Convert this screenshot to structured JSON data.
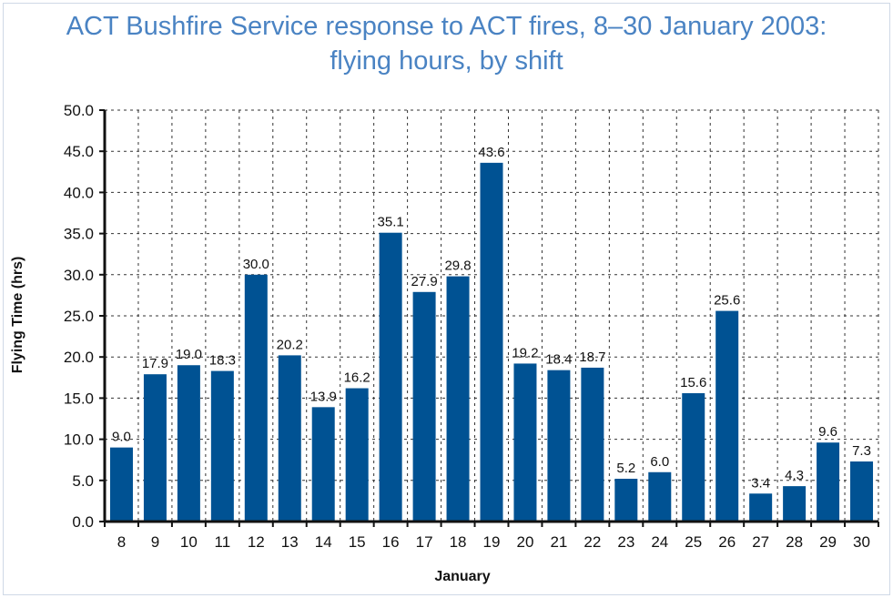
{
  "chart_data": {
    "type": "bar",
    "title_line1": "ACT Bushfire Service response to ACT fires, 8–30 January 2003:",
    "title_line2": "flying hours, by shift",
    "xlabel": "January",
    "ylabel": "Flying Time (hrs)",
    "ylim": [
      0,
      50
    ],
    "ytick_step": 5,
    "ytick_labels": [
      "0.0",
      "5.0",
      "10.0",
      "15.0",
      "20.0",
      "25.0",
      "30.0",
      "35.0",
      "40.0",
      "45.0",
      "50.0"
    ],
    "grid": true,
    "categories": [
      "8",
      "9",
      "10",
      "11",
      "12",
      "13",
      "14",
      "15",
      "16",
      "17",
      "18",
      "19",
      "20",
      "21",
      "22",
      "23",
      "24",
      "25",
      "26",
      "27",
      "28",
      "29",
      "30"
    ],
    "values": [
      9.0,
      17.9,
      19.0,
      18.3,
      30.0,
      20.2,
      13.9,
      16.2,
      35.1,
      27.9,
      29.8,
      43.6,
      19.2,
      18.4,
      18.7,
      5.2,
      6.0,
      15.6,
      25.6,
      3.4,
      4.3,
      9.6,
      7.3
    ],
    "value_labels": [
      "9.0",
      "17.9",
      "19.0",
      "18.3",
      "30.0",
      "20.2",
      "13.9",
      "16.2",
      "35.1",
      "27.9",
      "29.8",
      "43.6",
      "19.2",
      "18.4",
      "18.7",
      "5.2",
      "6.0",
      "15.6",
      "25.6",
      "3.4",
      "4.3",
      "9.6",
      "7.3"
    ],
    "colors": {
      "bar": "#005293",
      "title": "#4a83c3",
      "axis": "#111111",
      "grid": "#333333",
      "text": "#111111"
    }
  }
}
